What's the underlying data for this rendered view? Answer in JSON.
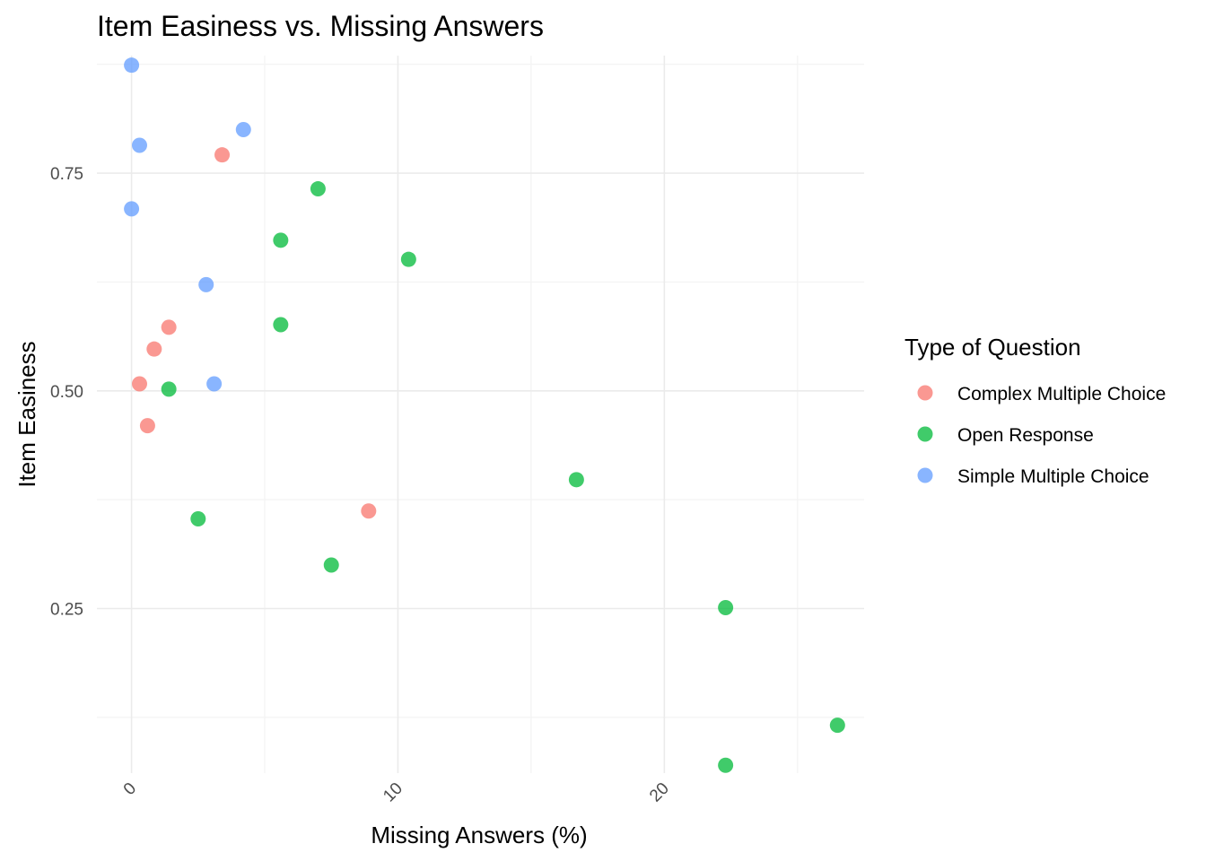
{
  "chart_data": {
    "type": "scatter",
    "title": "Item Easiness vs. Missing Answers",
    "xlabel": "Missing Answers (%)",
    "ylabel": "Item Easiness",
    "xlim": [
      -1.3,
      27.5
    ],
    "ylim": [
      0.061,
      0.885
    ],
    "x_ticks": [
      0,
      10,
      20
    ],
    "x_tick_labels": [
      "0",
      "10",
      "20"
    ],
    "y_ticks": [
      0.25,
      0.5,
      0.75
    ],
    "y_tick_labels": [
      "0.25",
      "0.50",
      "0.75"
    ],
    "grid": true,
    "legend": {
      "title": "Type of Question",
      "position": "right"
    },
    "series": [
      {
        "name": "Complex Multiple Choice",
        "color": "#F8766D",
        "points": [
          {
            "x": 3.4,
            "y": 0.771
          },
          {
            "x": 1.4,
            "y": 0.573
          },
          {
            "x": 0.85,
            "y": 0.548
          },
          {
            "x": 0.3,
            "y": 0.508
          },
          {
            "x": 0.6,
            "y": 0.46
          },
          {
            "x": 8.9,
            "y": 0.362
          }
        ]
      },
      {
        "name": "Open Response",
        "color": "#00BA38",
        "points": [
          {
            "x": 7.0,
            "y": 0.732
          },
          {
            "x": 5.6,
            "y": 0.673
          },
          {
            "x": 10.4,
            "y": 0.651
          },
          {
            "x": 5.6,
            "y": 0.576
          },
          {
            "x": 1.4,
            "y": 0.502
          },
          {
            "x": 16.7,
            "y": 0.398
          },
          {
            "x": 2.5,
            "y": 0.353
          },
          {
            "x": 7.5,
            "y": 0.3
          },
          {
            "x": 22.3,
            "y": 0.251
          },
          {
            "x": 26.5,
            "y": 0.116
          },
          {
            "x": 22.3,
            "y": 0.07
          }
        ]
      },
      {
        "name": "Simple Multiple Choice",
        "color": "#619CFF",
        "points": [
          {
            "x": 0.0,
            "y": 0.874
          },
          {
            "x": 4.2,
            "y": 0.8
          },
          {
            "x": 0.3,
            "y": 0.782
          },
          {
            "x": 0.0,
            "y": 0.709
          },
          {
            "x": 2.8,
            "y": 0.622
          },
          {
            "x": 3.1,
            "y": 0.508
          }
        ]
      }
    ]
  }
}
